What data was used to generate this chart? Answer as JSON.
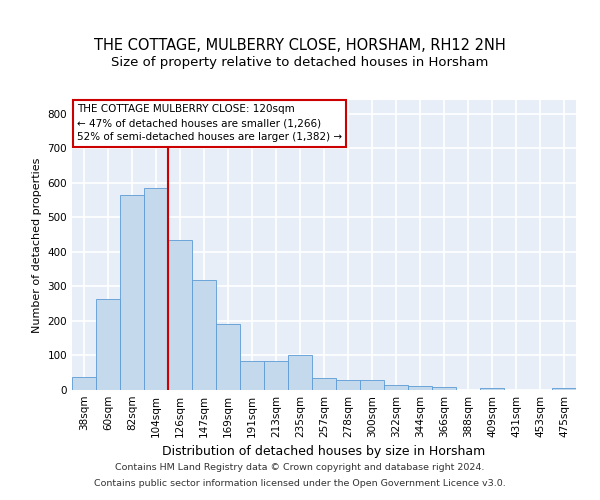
{
  "title": "THE COTTAGE, MULBERRY CLOSE, HORSHAM, RH12 2NH",
  "subtitle": "Size of property relative to detached houses in Horsham",
  "xlabel": "Distribution of detached houses by size in Horsham",
  "ylabel": "Number of detached properties",
  "categories": [
    "38sqm",
    "60sqm",
    "82sqm",
    "104sqm",
    "126sqm",
    "147sqm",
    "169sqm",
    "191sqm",
    "213sqm",
    "235sqm",
    "257sqm",
    "278sqm",
    "300sqm",
    "322sqm",
    "344sqm",
    "366sqm",
    "388sqm",
    "409sqm",
    "431sqm",
    "453sqm",
    "475sqm"
  ],
  "values": [
    38,
    265,
    565,
    585,
    435,
    320,
    190,
    85,
    85,
    100,
    35,
    28,
    28,
    15,
    12,
    10,
    0,
    5,
    0,
    0,
    5
  ],
  "bar_color": "#c5d9ed",
  "bar_edge_color": "#5b9bd5",
  "annotation_text": "THE COTTAGE MULBERRY CLOSE: 120sqm\n← 47% of detached houses are smaller (1,266)\n52% of semi-detached houses are larger (1,382) →",
  "annotation_box_color": "#ffffff",
  "annotation_box_edge": "#cc0000",
  "footnote1": "Contains HM Land Registry data © Crown copyright and database right 2024.",
  "footnote2": "Contains public sector information licensed under the Open Government Licence v3.0.",
  "ylim": [
    0,
    840
  ],
  "yticks": [
    0,
    100,
    200,
    300,
    400,
    500,
    600,
    700,
    800
  ],
  "bg_color": "#e8eef7",
  "grid_color": "#ffffff",
  "red_line_color": "#cc0000",
  "red_line_x": 3.5,
  "title_fontsize": 10.5,
  "subtitle_fontsize": 9.5,
  "xlabel_fontsize": 9,
  "ylabel_fontsize": 8,
  "tick_fontsize": 7.5,
  "annotation_fontsize": 7.5
}
